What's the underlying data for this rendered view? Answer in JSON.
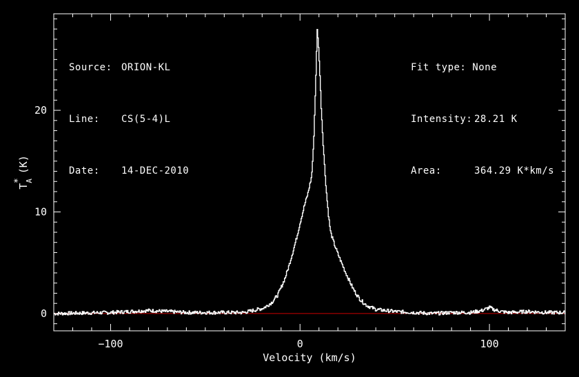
{
  "header_left": {
    "source_label": "Source:",
    "source_value": "ORION-KL",
    "line_label": "Line:",
    "line_value": "CS(5-4)L",
    "date_label": "Date:",
    "date_value": "14-DEC-2010"
  },
  "header_right": {
    "fit_label": "Fit type:",
    "fit_value": "None",
    "intensity_label": "Intensity:",
    "intensity_value": "28.21 K",
    "area_label": "Area:",
    "area_value": "364.29 K*km/s"
  },
  "chart_data": {
    "type": "line",
    "title": "",
    "xlabel": "Velocity (km/s)",
    "ylabel_main": "T",
    "ylabel_sup": "*",
    "ylabel_sub": "A",
    "ylabel_unit": "(K)",
    "xlim": [
      -130,
      140
    ],
    "ylim": [
      -1.7,
      29.5
    ],
    "xticks": [
      -100,
      0,
      100
    ],
    "xtick_labels": [
      "−100",
      "0",
      "100"
    ],
    "yticks": [
      0,
      10,
      20
    ],
    "ytick_labels": [
      "0",
      "10",
      "20"
    ],
    "baseline": {
      "y": 0,
      "color": "#cc0000"
    },
    "line_color": "#ffffff",
    "series": [
      {
        "values": [
          [
            -130,
            0.0
          ],
          [
            -100,
            0.1
          ],
          [
            -90,
            0.2
          ],
          [
            -80,
            0.3
          ],
          [
            -70,
            0.2
          ],
          [
            -60,
            0.1
          ],
          [
            -50,
            0.1
          ],
          [
            -40,
            0.1
          ],
          [
            -30,
            0.1
          ],
          [
            -25,
            0.3
          ],
          [
            -20,
            0.5
          ],
          [
            -18,
            0.7
          ],
          [
            -15,
            1.1
          ],
          [
            -12,
            1.8
          ],
          [
            -10,
            2.6
          ],
          [
            -8,
            3.5
          ],
          [
            -6,
            4.7
          ],
          [
            -4,
            6.0
          ],
          [
            -2,
            7.4
          ],
          [
            0,
            9.0
          ],
          [
            2,
            10.5
          ],
          [
            4,
            11.8
          ],
          [
            6,
            13.5
          ],
          [
            7,
            16.5
          ],
          [
            8,
            22.0
          ],
          [
            9,
            28.2
          ],
          [
            10,
            25.0
          ],
          [
            11,
            20.5
          ],
          [
            12,
            17.0
          ],
          [
            13,
            14.0
          ],
          [
            14,
            11.5
          ],
          [
            15,
            9.5
          ],
          [
            16,
            8.0
          ],
          [
            18,
            6.8
          ],
          [
            20,
            5.8
          ],
          [
            22,
            4.9
          ],
          [
            24,
            4.0
          ],
          [
            26,
            3.2
          ],
          [
            28,
            2.4
          ],
          [
            30,
            1.8
          ],
          [
            32,
            1.3
          ],
          [
            35,
            0.8
          ],
          [
            40,
            0.4
          ],
          [
            50,
            0.2
          ],
          [
            60,
            0.1
          ],
          [
            70,
            0.0
          ],
          [
            80,
            0.1
          ],
          [
            90,
            0.1
          ],
          [
            96,
            0.3
          ],
          [
            100,
            0.6
          ],
          [
            102,
            0.4
          ],
          [
            106,
            0.2
          ],
          [
            110,
            0.1
          ],
          [
            120,
            0.2
          ],
          [
            130,
            0.1
          ],
          [
            140,
            0.1
          ]
        ]
      }
    ]
  }
}
